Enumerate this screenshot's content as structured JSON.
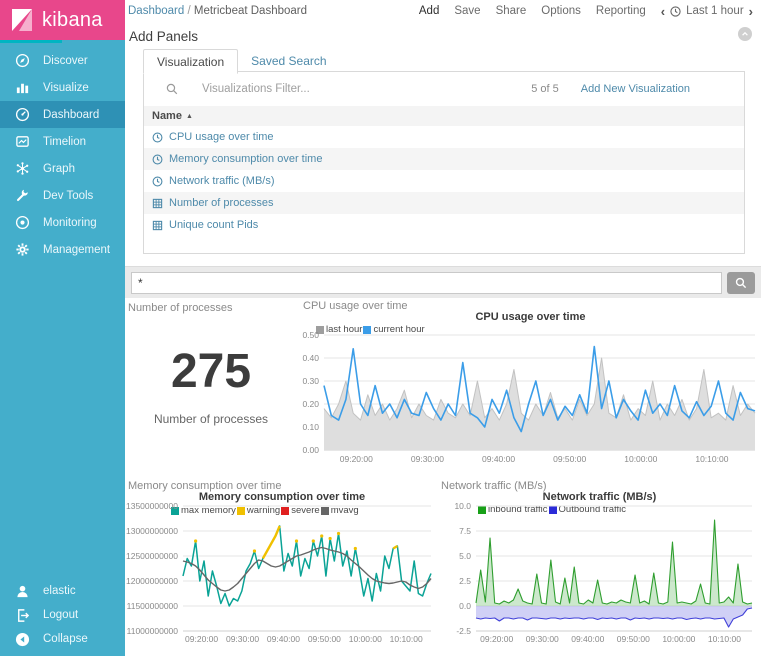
{
  "brand": {
    "name": "kibana"
  },
  "sidebar": {
    "items": [
      {
        "label": "Discover",
        "icon": "compass-icon",
        "active": false
      },
      {
        "label": "Visualize",
        "icon": "bar-chart-icon",
        "active": false
      },
      {
        "label": "Dashboard",
        "icon": "gauge-icon",
        "active": true
      },
      {
        "label": "Timelion",
        "icon": "timelion-icon",
        "active": false
      },
      {
        "label": "Graph",
        "icon": "graph-icon",
        "active": false
      },
      {
        "label": "Dev Tools",
        "icon": "wrench-icon",
        "active": false
      },
      {
        "label": "Monitoring",
        "icon": "eye-icon",
        "active": false
      },
      {
        "label": "Management",
        "icon": "gear-icon",
        "active": false
      }
    ],
    "footer": [
      {
        "label": "elastic",
        "icon": "user-icon"
      },
      {
        "label": "Logout",
        "icon": "logout-icon"
      },
      {
        "label": "Collapse",
        "icon": "collapse-icon"
      }
    ]
  },
  "topbar": {
    "breadcrumb": {
      "section": "Dashboard",
      "separator": "/",
      "page": "Metricbeat Dashboard"
    },
    "menu": [
      "Add",
      "Save",
      "Share",
      "Options",
      "Reporting"
    ],
    "active_menu_item": "Add",
    "time_picker": {
      "prev": "‹",
      "label": "Last 1 hour",
      "next": "›"
    }
  },
  "add_panels": {
    "title": "Add Panels",
    "tabs": [
      {
        "label": "Visualization",
        "active": true
      },
      {
        "label": "Saved Search",
        "active": false
      }
    ],
    "filter": {
      "placeholder": "Visualizations Filter..."
    },
    "count": "5 of 5",
    "add_new_link": "Add New Visualization",
    "table": {
      "header": "Name",
      "sort_glyph": "▲",
      "rows": [
        {
          "label": "CPU usage over time",
          "icon": "clock-icon"
        },
        {
          "label": "Memory consumption over time",
          "icon": "clock-icon"
        },
        {
          "label": "Network traffic (MB/s)",
          "icon": "clock-icon"
        },
        {
          "label": "Number of processes",
          "icon": "table-icon"
        },
        {
          "label": "Unique count Pids",
          "icon": "table-icon"
        }
      ]
    }
  },
  "query_bar": {
    "value": "*"
  },
  "metric_panel": {
    "panel_title": "Number of processes",
    "value": "275",
    "label": "Number of processes"
  },
  "colors": {
    "brand_pink": "#e8478b",
    "sidebar_blue": "#44aecb",
    "sidebar_active": "#2e91b5",
    "accent_teal": "#00b5c2",
    "link": "#4e8aaa",
    "cpu_current": "#3b9de8",
    "cpu_last": "#9e9e9e",
    "mem_max": "#0aa396",
    "mem_warning": "#f0c000",
    "mem_severe": "#e02020",
    "mem_mvavg": "#666666",
    "net_inbound": "#18a018",
    "net_outbound": "#2b2bd8"
  },
  "chart_data": [
    {
      "id": "cpu",
      "type": "line",
      "panel_title": "CPU usage over time",
      "title": "CPU usage over time",
      "ylim": [
        0,
        0.5
      ],
      "yticks": [
        {
          "v": 0,
          "label": "0.00"
        },
        {
          "v": 0.1,
          "label": "0.10"
        },
        {
          "v": 0.2,
          "label": "0.20"
        },
        {
          "v": 0.3,
          "label": "0.30"
        },
        {
          "v": 0.4,
          "label": "0.40"
        },
        {
          "v": 0.5,
          "label": "0.50"
        }
      ],
      "xticks": [
        {
          "f": 0.075,
          "label": "09:20:00"
        },
        {
          "f": 0.24,
          "label": "09:30:00"
        },
        {
          "f": 0.405,
          "label": "09:40:00"
        },
        {
          "f": 0.57,
          "label": "09:50:00"
        },
        {
          "f": 0.735,
          "label": "10:00:00"
        },
        {
          "f": 0.9,
          "label": "10:10:00"
        }
      ],
      "legend": [
        {
          "label": "last hour",
          "color": "#9e9e9e"
        },
        {
          "label": "current hour",
          "color": "#3b9de8"
        }
      ],
      "series": [
        {
          "name": "last hour",
          "color": "#c2c2c2",
          "fill": "#dedede",
          "base": 0,
          "width": 1,
          "values": [
            0.18,
            0.14,
            0.2,
            0.3,
            0.16,
            0.13,
            0.24,
            0.15,
            0.2,
            0.13,
            0.18,
            0.26,
            0.14,
            0.2,
            0.15,
            0.13,
            0.22,
            0.16,
            0.14,
            0.2,
            0.15,
            0.3,
            0.14,
            0.18,
            0.13,
            0.2,
            0.35,
            0.16,
            0.13,
            0.2,
            0.15,
            0.25,
            0.14,
            0.18,
            0.13,
            0.22,
            0.15,
            0.2,
            0.4,
            0.16,
            0.14,
            0.24,
            0.13,
            0.18,
            0.15,
            0.3,
            0.13,
            0.2,
            0.15,
            0.22,
            0.13,
            0.18,
            0.35,
            0.14,
            0.16,
            0.13,
            0.28,
            0.15,
            0.2,
            0.16
          ]
        },
        {
          "name": "current hour",
          "color": "#3b9de8",
          "width": 1.6,
          "values": [
            0.28,
            0.15,
            0.13,
            0.22,
            0.44,
            0.2,
            0.15,
            0.28,
            0.16,
            0.2,
            0.14,
            0.22,
            0.16,
            0.15,
            0.25,
            0.18,
            0.13,
            0.2,
            0.15,
            0.38,
            0.16,
            0.14,
            0.1,
            0.22,
            0.16,
            0.26,
            0.14,
            0.08,
            0.2,
            0.3,
            0.15,
            0.22,
            0.13,
            0.19,
            0.15,
            0.24,
            0.16,
            0.45,
            0.18,
            0.3,
            0.14,
            0.22,
            0.17,
            0.13,
            0.26,
            0.16,
            0.2,
            0.15,
            0.28,
            0.17,
            0.14,
            0.21,
            0.15,
            0.19,
            0.3,
            0.16,
            0.13,
            0.25,
            0.18,
            0.17
          ]
        }
      ]
    },
    {
      "id": "memory",
      "type": "line",
      "panel_title": "Memory consumption over time",
      "title": "Memory consumption over time",
      "ylim": [
        11,
        13.5
      ],
      "yticks": [
        {
          "v": 11,
          "label": "11000000000"
        },
        {
          "v": 11.5,
          "label": "11500000000"
        },
        {
          "v": 12,
          "label": "12000000000"
        },
        {
          "v": 12.5,
          "label": "12500000000"
        },
        {
          "v": 13,
          "label": "13000000000"
        },
        {
          "v": 13.5,
          "label": "13500000000"
        }
      ],
      "xticks": [
        {
          "f": 0.075,
          "label": "09:20:00"
        },
        {
          "f": 0.24,
          "label": "09:30:00"
        },
        {
          "f": 0.405,
          "label": "09:40:00"
        },
        {
          "f": 0.57,
          "label": "09:50:00"
        },
        {
          "f": 0.735,
          "label": "10:00:00"
        },
        {
          "f": 0.9,
          "label": "10:10:00"
        }
      ],
      "legend": [
        {
          "label": "max memory",
          "color": "#0aa396"
        },
        {
          "label": "warning",
          "color": "#f0c000"
        },
        {
          "label": "severe",
          "color": "#e02020"
        },
        {
          "label": "mvavg",
          "color": "#666666"
        }
      ],
      "series": [
        {
          "name": "max memory",
          "color": "#0aa396",
          "width": 1.5,
          "values": [
            12.1,
            12.45,
            12.3,
            12.8,
            12.0,
            12.4,
            11.7,
            12.2,
            11.9,
            11.55,
            11.75,
            11.5,
            11.65,
            11.6,
            11.8,
            12.2,
            12.35,
            12.6,
            12.25,
            12.45,
            12.6,
            12.75,
            12.9,
            13.1,
            12.2,
            12.55,
            12.3,
            12.8,
            12.1,
            12.45,
            12.25,
            12.8,
            12.5,
            12.9,
            12.1,
            12.85,
            12.4,
            12.95,
            12.3,
            12.6,
            12.1,
            12.65,
            12.2,
            11.7,
            12.05,
            11.6,
            12.15,
            11.8,
            12.5,
            12.25,
            12.65,
            12.7,
            12.0,
            11.9,
            11.8,
            12.4,
            11.75,
            11.7,
            11.95,
            12.15
          ]
        },
        {
          "name": "warning",
          "color": "#f0c000",
          "width": 2.4,
          "values": [
            null,
            null,
            null,
            12.8,
            null,
            null,
            null,
            null,
            null,
            null,
            null,
            null,
            null,
            null,
            null,
            null,
            null,
            12.6,
            null,
            12.45,
            12.6,
            12.75,
            12.9,
            13.1,
            null,
            null,
            null,
            12.8,
            null,
            null,
            null,
            12.8,
            null,
            12.9,
            null,
            12.85,
            null,
            12.95,
            null,
            null,
            null,
            12.65,
            null,
            null,
            null,
            null,
            null,
            null,
            null,
            null,
            12.65,
            12.7,
            null,
            null,
            null,
            null,
            null,
            null,
            null,
            null
          ]
        },
        {
          "name": "severe",
          "color": "#e02020",
          "width": 2.4,
          "values": [
            null,
            null,
            null,
            null,
            null,
            null,
            null,
            null,
            null,
            null,
            null,
            null,
            null,
            null,
            null,
            null,
            null,
            null,
            null,
            null,
            null,
            null,
            null,
            null,
            null,
            null,
            null,
            null,
            null,
            null,
            null,
            null,
            null,
            null,
            null,
            null,
            null,
            null,
            null,
            null,
            null,
            null,
            null,
            null,
            null,
            null,
            null,
            null,
            null,
            null,
            null,
            null,
            null,
            null,
            null,
            null,
            null,
            null,
            null,
            null
          ]
        },
        {
          "name": "mvavg",
          "color": "#666666",
          "width": 1.4,
          "values": [
            12.4,
            12.38,
            12.35,
            12.3,
            12.22,
            12.12,
            12.02,
            11.95,
            11.88,
            11.82,
            11.8,
            11.82,
            11.88,
            11.95,
            12.05,
            12.15,
            12.25,
            12.35,
            12.42,
            12.4,
            12.35,
            12.3,
            12.28,
            12.3,
            12.35,
            12.4,
            12.45,
            12.5,
            12.52,
            12.55,
            12.58,
            12.62,
            12.65,
            12.67,
            12.65,
            12.62,
            12.6,
            12.58,
            12.55,
            12.5,
            12.42,
            12.35,
            12.28,
            12.2,
            12.12,
            12.05,
            12.0,
            11.98,
            11.96,
            11.95,
            11.96,
            11.98,
            12.0,
            11.98,
            11.92,
            11.88,
            11.85,
            11.88,
            11.95,
            12.05
          ]
        }
      ]
    },
    {
      "id": "network",
      "type": "area",
      "panel_title": "Network traffic (MB/s)",
      "title": "Network traffic (MB/s)",
      "ylim": [
        -2.5,
        10
      ],
      "yticks": [
        {
          "v": -2.5,
          "label": "-2.5"
        },
        {
          "v": 0,
          "label": "0.0"
        },
        {
          "v": 2.5,
          "label": "2.5"
        },
        {
          "v": 5,
          "label": "5.0"
        },
        {
          "v": 7.5,
          "label": "7.5"
        },
        {
          "v": 10,
          "label": "10.0"
        }
      ],
      "xticks": [
        {
          "f": 0.075,
          "label": "09:20:00"
        },
        {
          "f": 0.24,
          "label": "09:30:00"
        },
        {
          "f": 0.405,
          "label": "09:40:00"
        },
        {
          "f": 0.57,
          "label": "09:50:00"
        },
        {
          "f": 0.735,
          "label": "10:00:00"
        },
        {
          "f": 0.9,
          "label": "10:10:00"
        }
      ],
      "legend": [
        {
          "label": "inbound traffic",
          "color": "#18a018"
        },
        {
          "label": "Outbound traffic",
          "color": "#2b2bd8"
        }
      ],
      "series": [
        {
          "name": "inbound traffic",
          "color": "#2f9e2f",
          "fill": "rgba(110,190,110,0.35)",
          "base": 0,
          "width": 1.1,
          "values": [
            0.3,
            3.6,
            0.4,
            6.8,
            0.3,
            0.2,
            0.5,
            0.3,
            0.6,
            1.7,
            0.5,
            0.3,
            0.2,
            3.2,
            0.3,
            0.2,
            4.6,
            0.4,
            0.2,
            2.8,
            0.3,
            3.9,
            0.3,
            0.2,
            0.6,
            0.3,
            2.6,
            0.3,
            0.2,
            0.4,
            0.3,
            0.6,
            0.4,
            0.3,
            3.1,
            0.3,
            0.5,
            0.2,
            3.3,
            0.3,
            0.2,
            0.4,
            6.4,
            0.3,
            0.4,
            0.3,
            0.2,
            0.5,
            2.2,
            0.3,
            0.2,
            8.6,
            0.3,
            0.4,
            0.9,
            0.3,
            4.2,
            0.4,
            0.2,
            0.3
          ]
        },
        {
          "name": "Outbound traffic",
          "color": "#4040d8",
          "fill": "rgba(120,120,230,0.35)",
          "base": 0,
          "width": 1.1,
          "values": [
            -1.2,
            -1.3,
            -1.2,
            -1.25,
            -1.2,
            -1.5,
            -1.2,
            -1.2,
            -1.3,
            -1.2,
            -1.2,
            -1.4,
            -1.2,
            -1.2,
            -1.25,
            -1.3,
            -1.2,
            -1.2,
            -1.3,
            -1.2,
            -1.25,
            -1.2,
            -1.2,
            -1.3,
            -1.2,
            -1.2,
            -1.35,
            -1.2,
            -1.25,
            -1.2,
            -1.3,
            -1.2,
            -1.2,
            -1.4,
            -1.2,
            -1.25,
            -1.2,
            -1.3,
            -1.2,
            -1.2,
            -1.25,
            -1.2,
            -1.3,
            -1.2,
            -1.2,
            -1.35,
            -1.25,
            -1.2,
            -1.3,
            -1.2,
            -1.2,
            -1.3,
            -1.25,
            -1.2,
            -2.1,
            -1.3,
            -1.1,
            -0.9,
            -0.3,
            -0.2
          ]
        }
      ]
    }
  ]
}
